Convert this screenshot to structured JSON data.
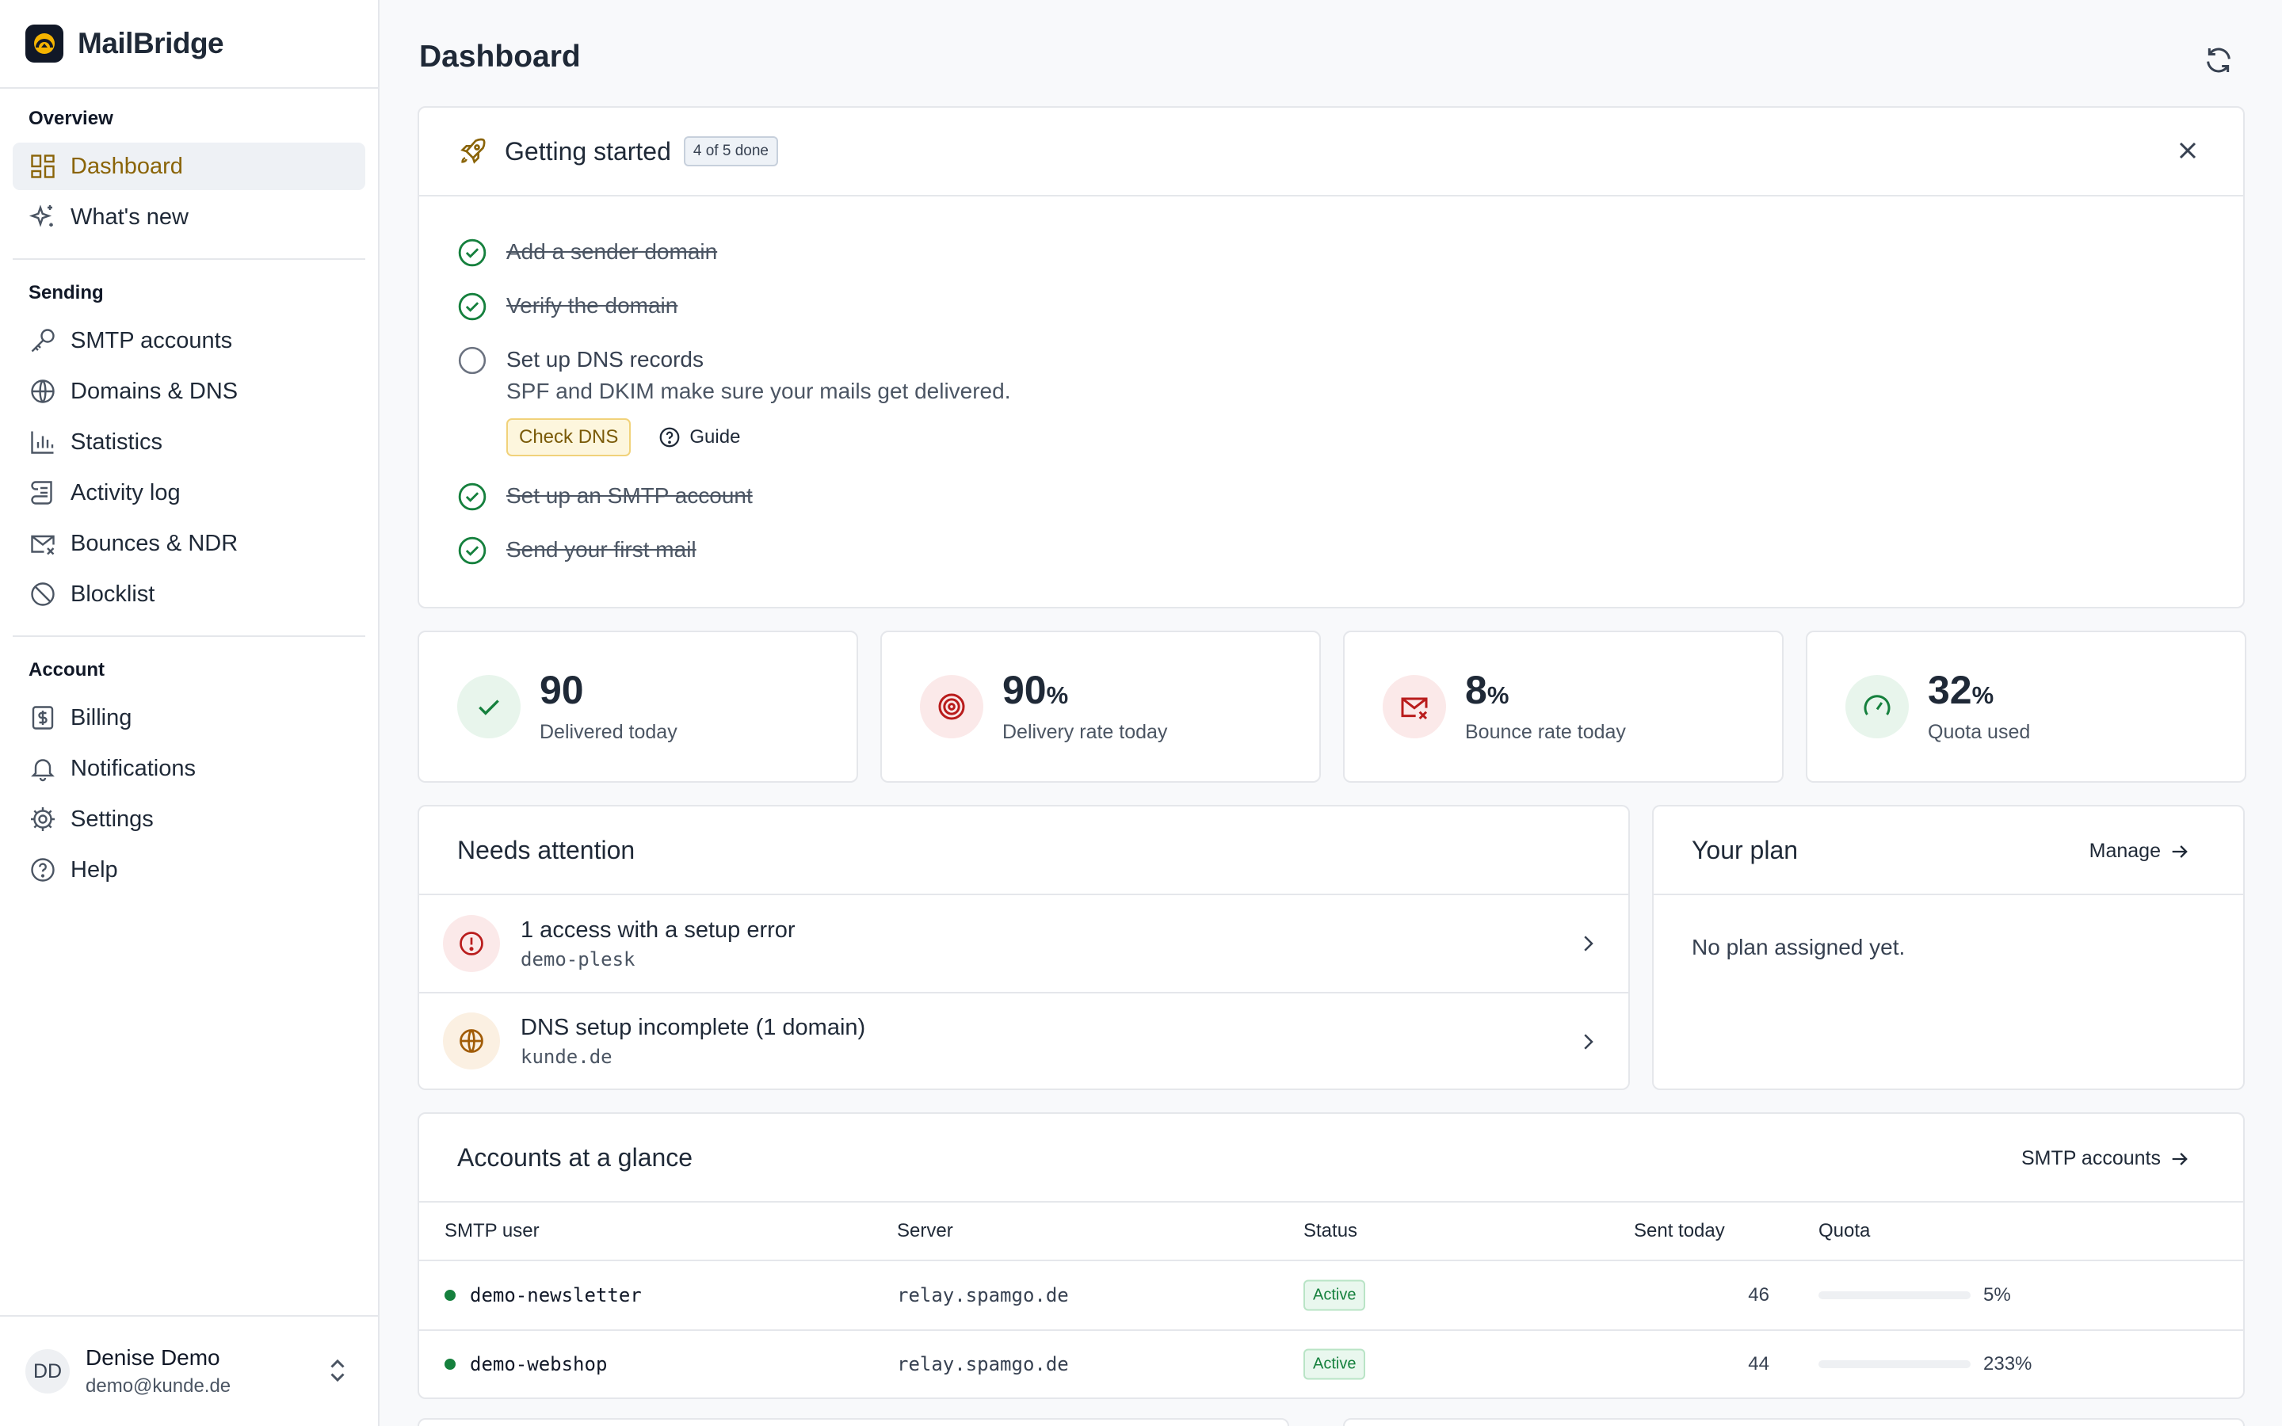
{
  "brand": {
    "name": "MailBridge"
  },
  "nav": {
    "overview_heading": "Overview",
    "overview": [
      {
        "label": "Dashboard",
        "icon": "dashboard-icon",
        "active": true
      },
      {
        "label": "What's new",
        "icon": "sparkles-icon"
      }
    ],
    "sending_heading": "Sending",
    "sending": [
      {
        "label": "SMTP accounts",
        "icon": "key-icon"
      },
      {
        "label": "Domains & DNS",
        "icon": "globe-icon"
      },
      {
        "label": "Statistics",
        "icon": "bar-chart-icon"
      },
      {
        "label": "Activity log",
        "icon": "scroll-icon"
      },
      {
        "label": "Bounces & NDR",
        "icon": "mail-x-icon"
      },
      {
        "label": "Blocklist",
        "icon": "ban-icon"
      }
    ],
    "account_heading": "Account",
    "account": [
      {
        "label": "Billing",
        "icon": "dollar-icon"
      },
      {
        "label": "Notifications",
        "icon": "bell-icon"
      },
      {
        "label": "Settings",
        "icon": "gear-icon"
      },
      {
        "label": "Help",
        "icon": "help-icon"
      }
    ]
  },
  "user": {
    "initials": "DD",
    "name": "Denise Demo",
    "email": "demo@kunde.de"
  },
  "page": {
    "title": "Dashboard"
  },
  "getting_started": {
    "title": "Getting started",
    "badge": "4 of 5 done",
    "steps": [
      {
        "label": "Add a sender domain",
        "done": true
      },
      {
        "label": "Verify the domain",
        "done": true
      },
      {
        "label": "Set up DNS records",
        "done": false,
        "description": "SPF and DKIM make sure your mails get delivered.",
        "primary_action": "Check DNS",
        "secondary_action": "Guide"
      },
      {
        "label": "Set up an SMTP account",
        "done": true
      },
      {
        "label": "Send your first mail",
        "done": true
      }
    ]
  },
  "stats": [
    {
      "value": "90",
      "unit": "",
      "label": "Delivered today",
      "icon": "check-icon",
      "color": "#15803d",
      "bg": "#e8f5ec"
    },
    {
      "value": "90",
      "unit": "%",
      "label": "Delivery rate today",
      "icon": "target-icon",
      "color": "#b91c1c",
      "bg": "#fbe9e9"
    },
    {
      "value": "8",
      "unit": "%",
      "label": "Bounce rate today",
      "icon": "mail-x-icon",
      "color": "#b91c1c",
      "bg": "#fbe9e9"
    },
    {
      "value": "32",
      "unit": "%",
      "label": "Quota used",
      "icon": "gauge-icon",
      "color": "#15803d",
      "bg": "#e8f5ec"
    }
  ],
  "attention": {
    "title": "Needs attention",
    "items": [
      {
        "title": "1 access with a setup error",
        "sub": "demo-plesk",
        "icon": "alert-circle-icon",
        "color": "#b91c1c",
        "bg": "#fbe9e9"
      },
      {
        "title": "DNS setup incomplete (1 domain)",
        "sub": "kunde.de",
        "icon": "globe-icon",
        "color": "#a15c07",
        "bg": "#fbf0e2"
      }
    ]
  },
  "plan": {
    "title": "Your plan",
    "manage_label": "Manage",
    "empty_text": "No plan assigned yet."
  },
  "accounts": {
    "title": "Accounts at a glance",
    "link_label": "SMTP accounts",
    "columns": [
      "SMTP user",
      "Server",
      "Status",
      "Sent today",
      "Quota"
    ],
    "rows": [
      {
        "user": "demo-newsletter",
        "server": "relay.spamgo.de",
        "status": "Active",
        "sent": "46",
        "quota_pct": 5,
        "quota_label": "5%",
        "bar_color": "#15803d"
      },
      {
        "user": "demo-webshop",
        "server": "relay.spamgo.de",
        "status": "Active",
        "sent": "44",
        "quota_pct": 233,
        "quota_label": "233%",
        "bar_color": "#b42318"
      }
    ]
  },
  "colors": {
    "accent": "#8a6408",
    "success": "#15803d",
    "danger": "#b91c1c"
  }
}
